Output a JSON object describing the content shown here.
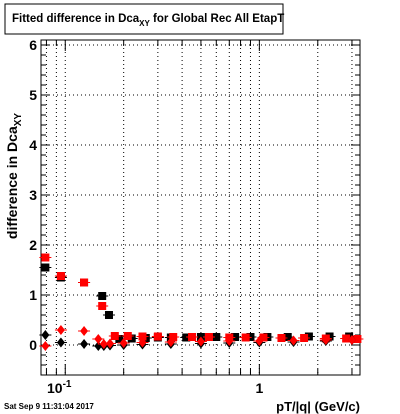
{
  "chart_data": {
    "type": "scatter",
    "title": {
      "main": "Fitted difference in Dca",
      "sub": "XY",
      "rest": " for Global Rec All EtapT"
    },
    "ylabel": {
      "main": "difference in Dca",
      "sub": "XY"
    },
    "xlabel": "pT/|q| (GeV/c)",
    "x_scale": "log",
    "xlim": [
      0.075,
      3.3
    ],
    "ylim": [
      -0.6,
      6.1
    ],
    "grid": true,
    "y_ticks": [
      "0",
      "1",
      "2",
      "3",
      "4",
      "5",
      "6"
    ],
    "x_ticks": [
      {
        "base": "10",
        "exp": "-1",
        "value": 0.1
      },
      {
        "base": "1",
        "exp": "",
        "value": 1
      }
    ],
    "series": [
      {
        "color": "#000000",
        "marker": "square",
        "x": [
          0.079,
          0.095,
          0.125,
          0.155,
          0.168,
          0.19,
          0.22,
          0.26,
          0.3,
          0.35,
          0.42,
          0.5,
          0.6,
          0.75,
          0.9,
          1.1,
          1.4,
          1.8,
          2.3,
          2.9
        ],
        "y": [
          1.55,
          1.35,
          1.25,
          0.98,
          0.6,
          0.12,
          0.13,
          0.14,
          0.15,
          0.15,
          0.15,
          0.16,
          0.16,
          0.16,
          0.16,
          0.16,
          0.16,
          0.17,
          0.17,
          0.17
        ]
      },
      {
        "color": "#ff0000",
        "marker": "square",
        "x": [
          0.079,
          0.095,
          0.125,
          0.155,
          0.18,
          0.21,
          0.25,
          0.3,
          0.36,
          0.45,
          0.55,
          0.7,
          0.85,
          1.05,
          1.3,
          1.7,
          2.2,
          2.8,
          3.2
        ],
        "y": [
          1.75,
          1.38,
          1.25,
          0.78,
          0.18,
          0.18,
          0.17,
          0.17,
          0.16,
          0.16,
          0.16,
          0.15,
          0.15,
          0.15,
          0.14,
          0.14,
          0.13,
          0.13,
          0.12
        ]
      },
      {
        "color": "#000000",
        "marker": "diamond",
        "x": [
          0.079,
          0.095,
          0.125,
          0.148,
          0.158,
          0.17,
          0.2,
          0.25,
          0.35,
          0.5,
          0.7,
          1.0,
          1.5,
          2.2,
          3.0
        ],
        "y": [
          0.2,
          0.05,
          0.02,
          -0.02,
          -0.02,
          -0.01,
          0.0,
          0.01,
          0.02,
          0.03,
          0.04,
          0.05,
          0.06,
          0.08,
          0.1
        ]
      },
      {
        "color": "#ff0000",
        "marker": "diamond",
        "x": [
          0.079,
          0.095,
          0.125,
          0.148,
          0.158,
          0.17,
          0.2,
          0.25,
          0.35,
          0.5,
          0.7,
          1.0,
          1.5,
          2.2,
          3.0
        ],
        "y": [
          -0.02,
          0.3,
          0.28,
          0.12,
          0.02,
          0.03,
          0.04,
          0.05,
          0.06,
          0.07,
          0.08,
          0.08,
          0.09,
          0.1,
          0.1
        ]
      }
    ]
  },
  "footer": {
    "datestamp": "Sat Sep  9 11:31:04 2017"
  }
}
